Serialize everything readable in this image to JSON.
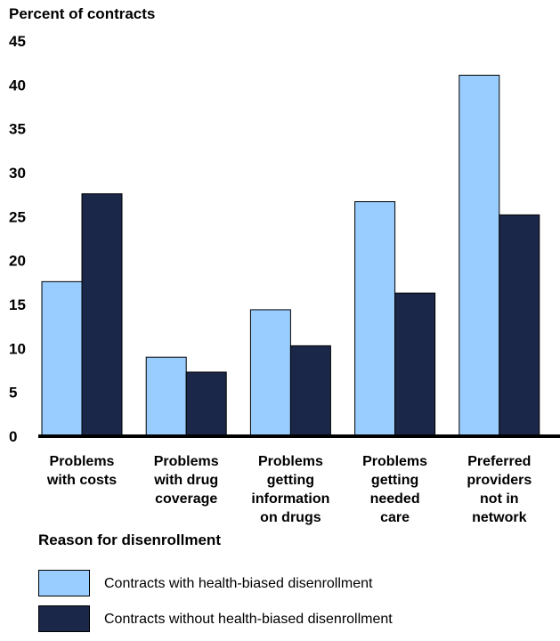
{
  "chart_data": {
    "type": "bar",
    "ylabel": "Percent of contracts",
    "xlabel": "Reason for disenrollment",
    "ylim": [
      0,
      45
    ],
    "yticks": [
      0,
      5,
      10,
      15,
      20,
      25,
      30,
      35,
      40,
      45
    ],
    "grid": false,
    "categories": [
      [
        "Problems",
        "with costs"
      ],
      [
        "Problems",
        "with drug",
        "coverage"
      ],
      [
        "Problems",
        "getting",
        "information",
        "on drugs"
      ],
      [
        "Problems",
        "getting",
        "needed",
        "care"
      ],
      [
        "Preferred",
        "providers",
        "not in",
        "network"
      ]
    ],
    "series": [
      {
        "name": "Contracts with health-biased disenrollment",
        "color": "#99ccff",
        "values": [
          17.6,
          9.0,
          14.4,
          26.7,
          41.1
        ]
      },
      {
        "name": "Contracts without health-biased disenrollment",
        "color": "#1a2748",
        "values": [
          27.6,
          7.3,
          10.3,
          16.3,
          25.2
        ]
      }
    ],
    "legend_position": "bottom"
  }
}
